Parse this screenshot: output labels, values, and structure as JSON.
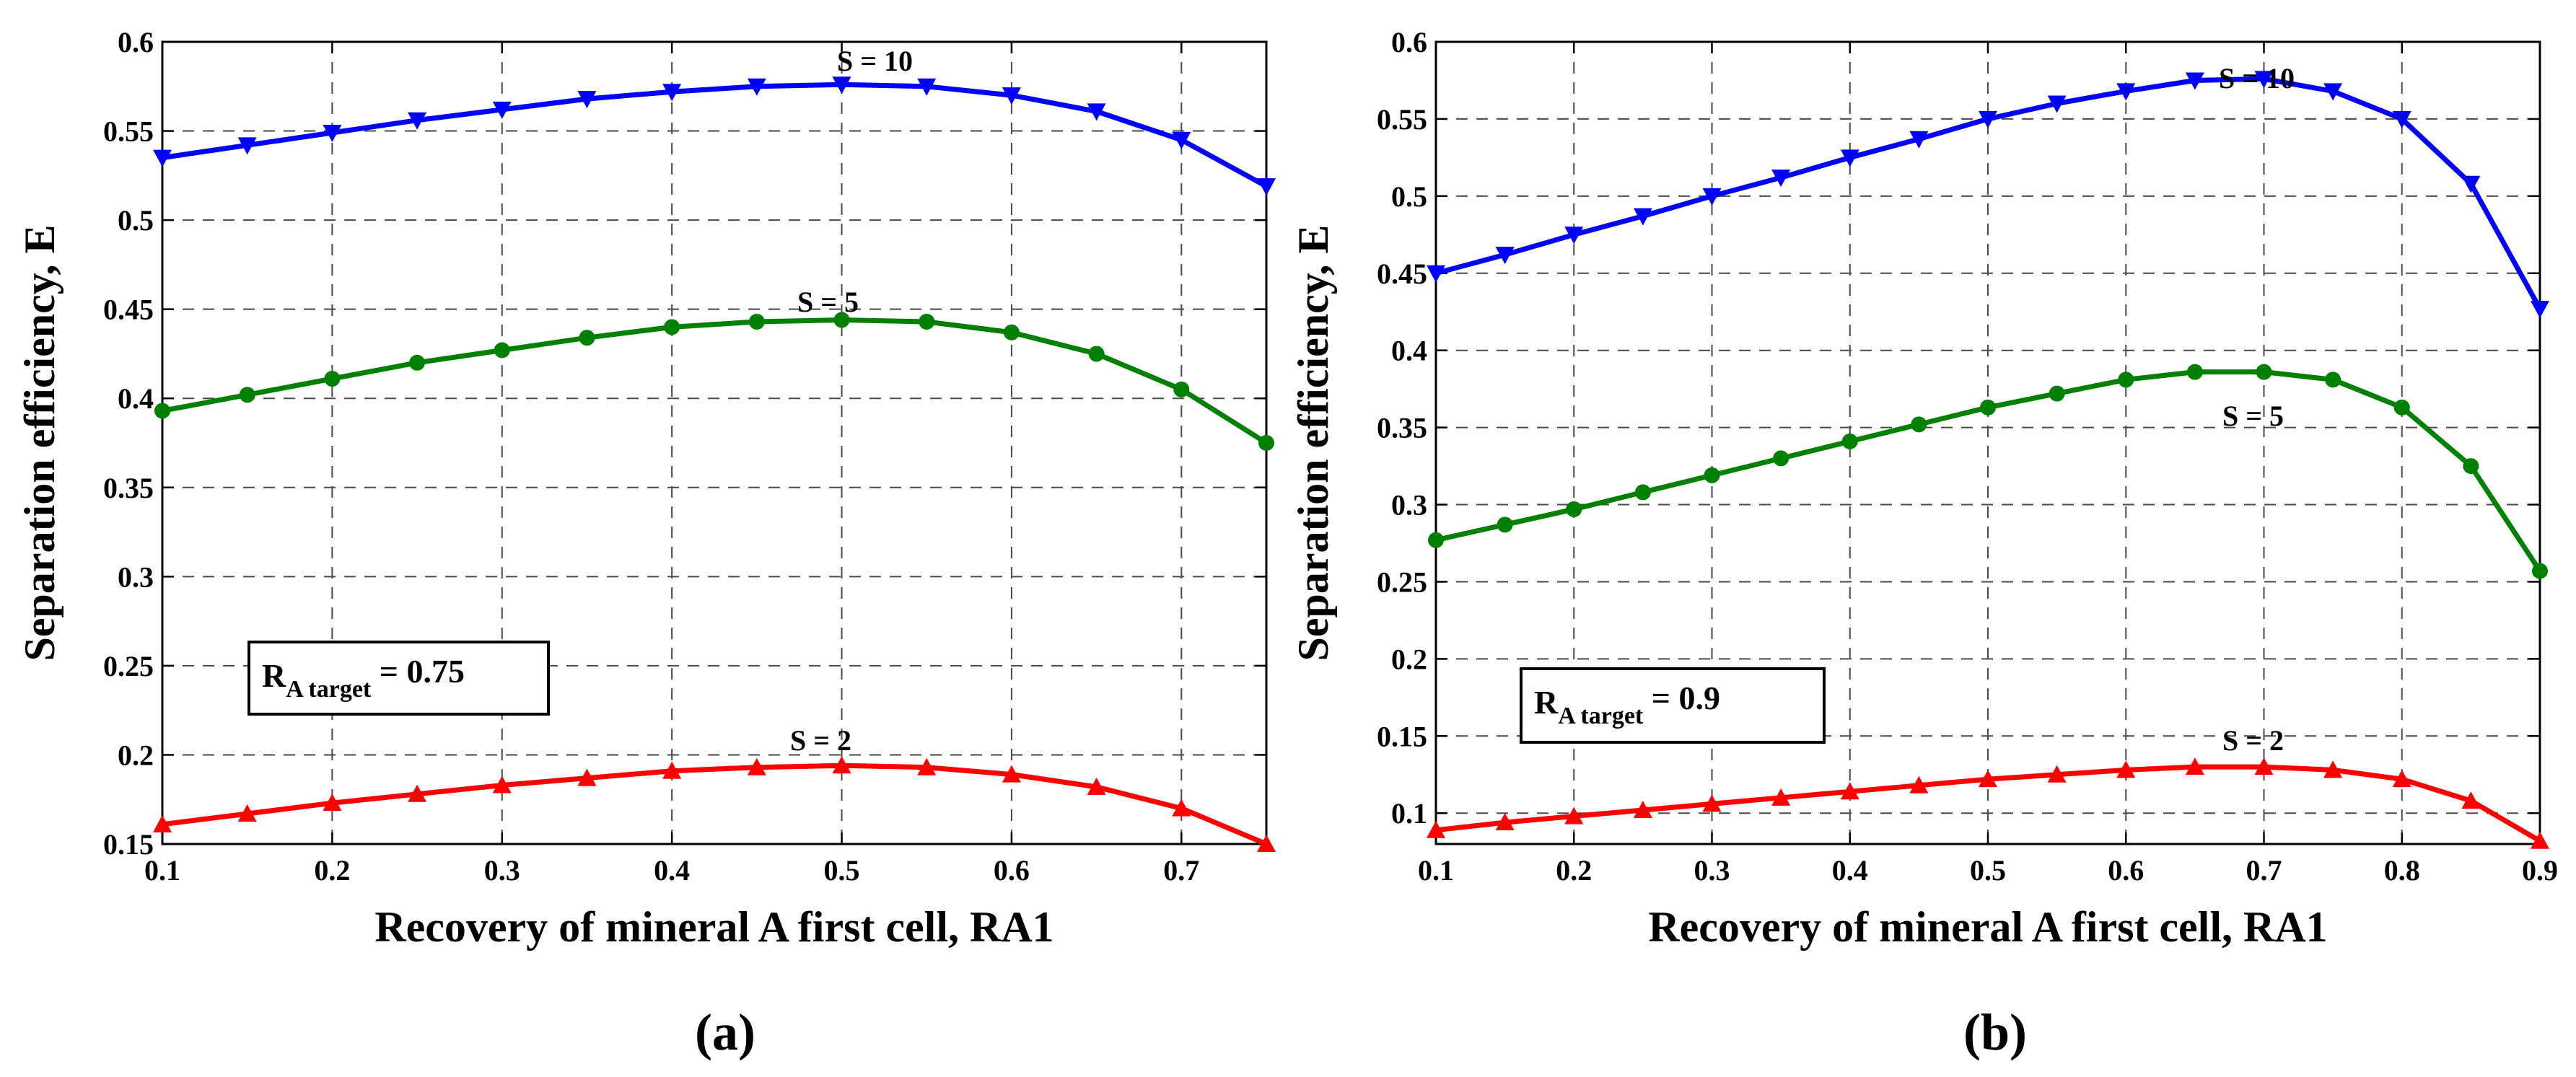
{
  "chart_data": [
    {
      "type": "line",
      "panel_label": "(a)",
      "xlabel": "Recovery of mineral A first cell, RA1",
      "ylabel": "Separation efficiency, E",
      "xlim": [
        0.1,
        0.75
      ],
      "ylim": [
        0.15,
        0.6
      ],
      "xticks": [
        "0.1",
        "0.2",
        "0.3",
        "0.4",
        "0.5",
        "0.6",
        "0.7"
      ],
      "yticks": [
        "0.15",
        "0.2",
        "0.25",
        "0.3",
        "0.35",
        "0.4",
        "0.45",
        "0.5",
        "0.55",
        "0.6"
      ],
      "grid": true,
      "x": [
        0.1,
        0.15,
        0.2,
        0.25,
        0.3,
        0.35,
        0.4,
        0.45,
        0.5,
        0.55,
        0.6,
        0.65,
        0.7,
        0.75
      ],
      "series": [
        {
          "name": "S = 10",
          "color": "#0000ff",
          "marker": "triangle-down",
          "values": [
            0.535,
            0.542,
            0.549,
            0.556,
            0.562,
            0.568,
            0.572,
            0.575,
            0.576,
            0.575,
            0.57,
            0.561,
            0.545,
            0.519
          ]
        },
        {
          "name": "S = 5",
          "color": "#008000",
          "marker": "circle",
          "values": [
            0.393,
            0.402,
            0.411,
            0.42,
            0.427,
            0.434,
            0.44,
            0.443,
            0.444,
            0.443,
            0.437,
            0.425,
            0.405,
            0.375
          ]
        },
        {
          "name": "S = 2",
          "color": "#ff0000",
          "marker": "triangle-up",
          "values": [
            0.161,
            0.167,
            0.173,
            0.178,
            0.183,
            0.187,
            0.191,
            0.193,
            0.194,
            0.193,
            0.189,
            0.182,
            0.17,
            0.15
          ]
        }
      ],
      "annotation": {
        "main": "R",
        "sub": "A target",
        "rest": " = 0.75"
      }
    },
    {
      "type": "line",
      "panel_label": "(b)",
      "xlabel": "Recovery of mineral A first cell, RA1",
      "ylabel": "Separation efficiency, E",
      "xlim": [
        0.1,
        0.9
      ],
      "ylim": [
        0.08,
        0.6
      ],
      "xticks": [
        "0.1",
        "0.2",
        "0.3",
        "0.4",
        "0.5",
        "0.6",
        "0.7",
        "0.8",
        "0.9"
      ],
      "yticks": [
        "0.1",
        "0.15",
        "0.2",
        "0.25",
        "0.3",
        "0.35",
        "0.4",
        "0.45",
        "0.5",
        "0.55",
        "0.6"
      ],
      "grid": true,
      "x": [
        0.1,
        0.15,
        0.2,
        0.25,
        0.3,
        0.35,
        0.4,
        0.45,
        0.5,
        0.55,
        0.6,
        0.65,
        0.7,
        0.75,
        0.8,
        0.85,
        0.9
      ],
      "series": [
        {
          "name": "S = 10",
          "color": "#0000ff",
          "marker": "triangle-down",
          "values": [
            0.45,
            0.462,
            0.475,
            0.487,
            0.5,
            0.512,
            0.525,
            0.537,
            0.55,
            0.56,
            0.568,
            0.575,
            0.576,
            0.568,
            0.55,
            0.508,
            0.427
          ]
        },
        {
          "name": "S = 5",
          "color": "#008000",
          "marker": "circle",
          "values": [
            0.277,
            0.287,
            0.297,
            0.308,
            0.319,
            0.33,
            0.341,
            0.352,
            0.363,
            0.372,
            0.381,
            0.386,
            0.386,
            0.381,
            0.363,
            0.325,
            0.257
          ]
        },
        {
          "name": "S = 2",
          "color": "#ff0000",
          "marker": "triangle-up",
          "values": [
            0.089,
            0.094,
            0.098,
            0.102,
            0.106,
            0.11,
            0.114,
            0.118,
            0.122,
            0.125,
            0.128,
            0.13,
            0.13,
            0.128,
            0.122,
            0.108,
            0.082
          ]
        }
      ],
      "annotation": {
        "main": "R",
        "sub": "A target",
        "rest": " = 0.9"
      }
    }
  ]
}
